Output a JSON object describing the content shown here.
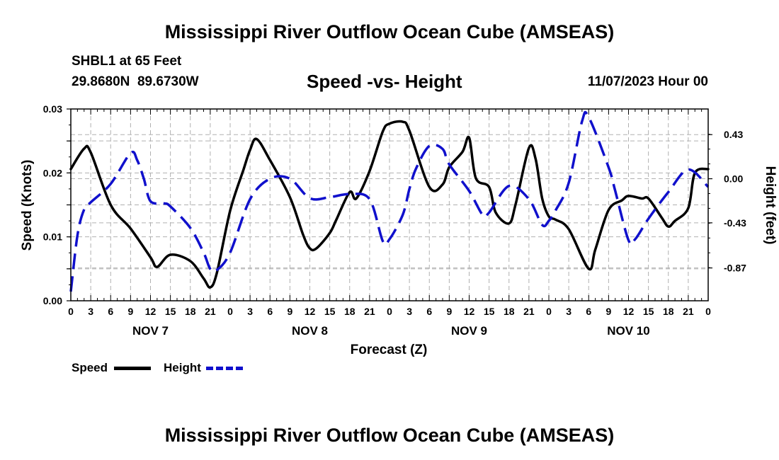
{
  "title": "Mississippi River Outflow Ocean Cube (AMSEAS)",
  "station": "SHBL1 at 65 Feet",
  "coords": "29.8680N  89.6730W",
  "subtitle": "Speed -vs- Height",
  "run_time": "11/07/2023 Hour 00",
  "footer_title": "Mississippi River Outflow Ocean Cube (AMSEAS)",
  "chart_data": {
    "type": "line",
    "title": "Speed -vs- Height",
    "xlabel": "Forecast (Z)",
    "ylabel": "Speed (Knots)",
    "y2label": "Height (feet)",
    "xlim": [
      0,
      96
    ],
    "ylim": [
      0.0,
      0.03
    ],
    "y2lim": [
      -1.19,
      0.68
    ],
    "grid": true,
    "y_ticks": [
      0.0,
      0.005,
      0.01,
      0.015,
      0.02,
      0.025,
      0.03
    ],
    "y_tick_labels": [
      "0.00",
      "",
      "0.01",
      "",
      "0.02",
      "",
      "0.03"
    ],
    "y2_ticks": [
      0.43,
      0.0,
      -0.43,
      -0.87
    ],
    "y2_tick_labels": [
      "0.43",
      "0.00",
      "-0.43",
      "-0.87"
    ],
    "x_ticks": [
      0,
      3,
      6,
      9,
      12,
      15,
      18,
      21,
      24,
      27,
      30,
      33,
      36,
      39,
      42,
      45,
      48,
      51,
      54,
      57,
      60,
      63,
      66,
      69,
      72,
      75,
      78,
      81,
      84,
      87,
      90,
      93,
      96
    ],
    "x_tick_labels": [
      "0",
      "3",
      "6",
      "9",
      "12",
      "15",
      "18",
      "21",
      "0",
      "3",
      "6",
      "9",
      "12",
      "15",
      "18",
      "21",
      "0",
      "3",
      "6",
      "9",
      "12",
      "15",
      "18",
      "21",
      "0",
      "3",
      "6",
      "9",
      "12",
      "15",
      "18",
      "21",
      "0"
    ],
    "day_labels": [
      {
        "x": 12,
        "label": "NOV 7"
      },
      {
        "x": 36,
        "label": "NOV 8"
      },
      {
        "x": 60,
        "label": "NOV 9"
      },
      {
        "x": 84,
        "label": "NOV 10"
      }
    ],
    "series": [
      {
        "name": "Speed",
        "axis": "left",
        "color": "#000000",
        "dash": "solid",
        "x": [
          0,
          2,
          3,
          6,
          9,
          12,
          13,
          15,
          18,
          20,
          21,
          22,
          24,
          26,
          27,
          28,
          30,
          33,
          35,
          36,
          37,
          39,
          40,
          42,
          43,
          45,
          47,
          48,
          50,
          51,
          54,
          56,
          57,
          59,
          60,
          61,
          63,
          64,
          66,
          67,
          69,
          70,
          71,
          72,
          73,
          75,
          78,
          79,
          81,
          83,
          84,
          86,
          87,
          89,
          90,
          91,
          93,
          94,
          96
        ],
        "y": [
          0.0206,
          0.0238,
          0.0232,
          0.015,
          0.0113,
          0.0068,
          0.0053,
          0.0072,
          0.0062,
          0.0035,
          0.0021,
          0.0044,
          0.0141,
          0.0205,
          0.0236,
          0.0253,
          0.022,
          0.0162,
          0.0103,
          0.0082,
          0.0082,
          0.0106,
          0.0127,
          0.017,
          0.016,
          0.0203,
          0.0265,
          0.0277,
          0.028,
          0.0266,
          0.0178,
          0.0182,
          0.0209,
          0.0233,
          0.0255,
          0.0192,
          0.0178,
          0.0138,
          0.0121,
          0.0151,
          0.0239,
          0.0222,
          0.016,
          0.0132,
          0.0127,
          0.0112,
          0.005,
          0.008,
          0.0142,
          0.0157,
          0.0164,
          0.016,
          0.016,
          0.013,
          0.0116,
          0.0125,
          0.0145,
          0.02,
          0.0206
        ]
      },
      {
        "name": "Height",
        "axis": "right",
        "color": "#1010cc",
        "dash": "dashed",
        "x": [
          0,
          1,
          2,
          3,
          6,
          9,
          10,
          11,
          12,
          14,
          15,
          18,
          20,
          21,
          22,
          24,
          27,
          30,
          33,
          36,
          39,
          42,
          45,
          47,
          48,
          50,
          51,
          52,
          54,
          56,
          57,
          60,
          62,
          63,
          66,
          69,
          71,
          72,
          73,
          75,
          77,
          78,
          81,
          82,
          84,
          85,
          87,
          90,
          93,
          96
        ],
        "y": [
          -1.1,
          -0.55,
          -0.3,
          -0.23,
          -0.05,
          0.25,
          0.18,
          0.0,
          -0.22,
          -0.24,
          -0.27,
          -0.48,
          -0.72,
          -0.88,
          -0.89,
          -0.72,
          -0.2,
          0.0,
          0.0,
          -0.19,
          -0.18,
          -0.15,
          -0.2,
          -0.61,
          -0.59,
          -0.35,
          -0.1,
          0.1,
          0.32,
          0.29,
          0.14,
          -0.12,
          -0.35,
          -0.33,
          -0.07,
          -0.2,
          -0.45,
          -0.41,
          -0.31,
          -0.04,
          0.56,
          0.6,
          0.11,
          -0.12,
          -0.6,
          -0.59,
          -0.39,
          -0.13,
          0.09,
          -0.08
        ]
      }
    ]
  },
  "legend": {
    "speed_label": "Speed",
    "height_label": "Height",
    "speed_color": "#000000",
    "height_color": "#1010cc"
  }
}
